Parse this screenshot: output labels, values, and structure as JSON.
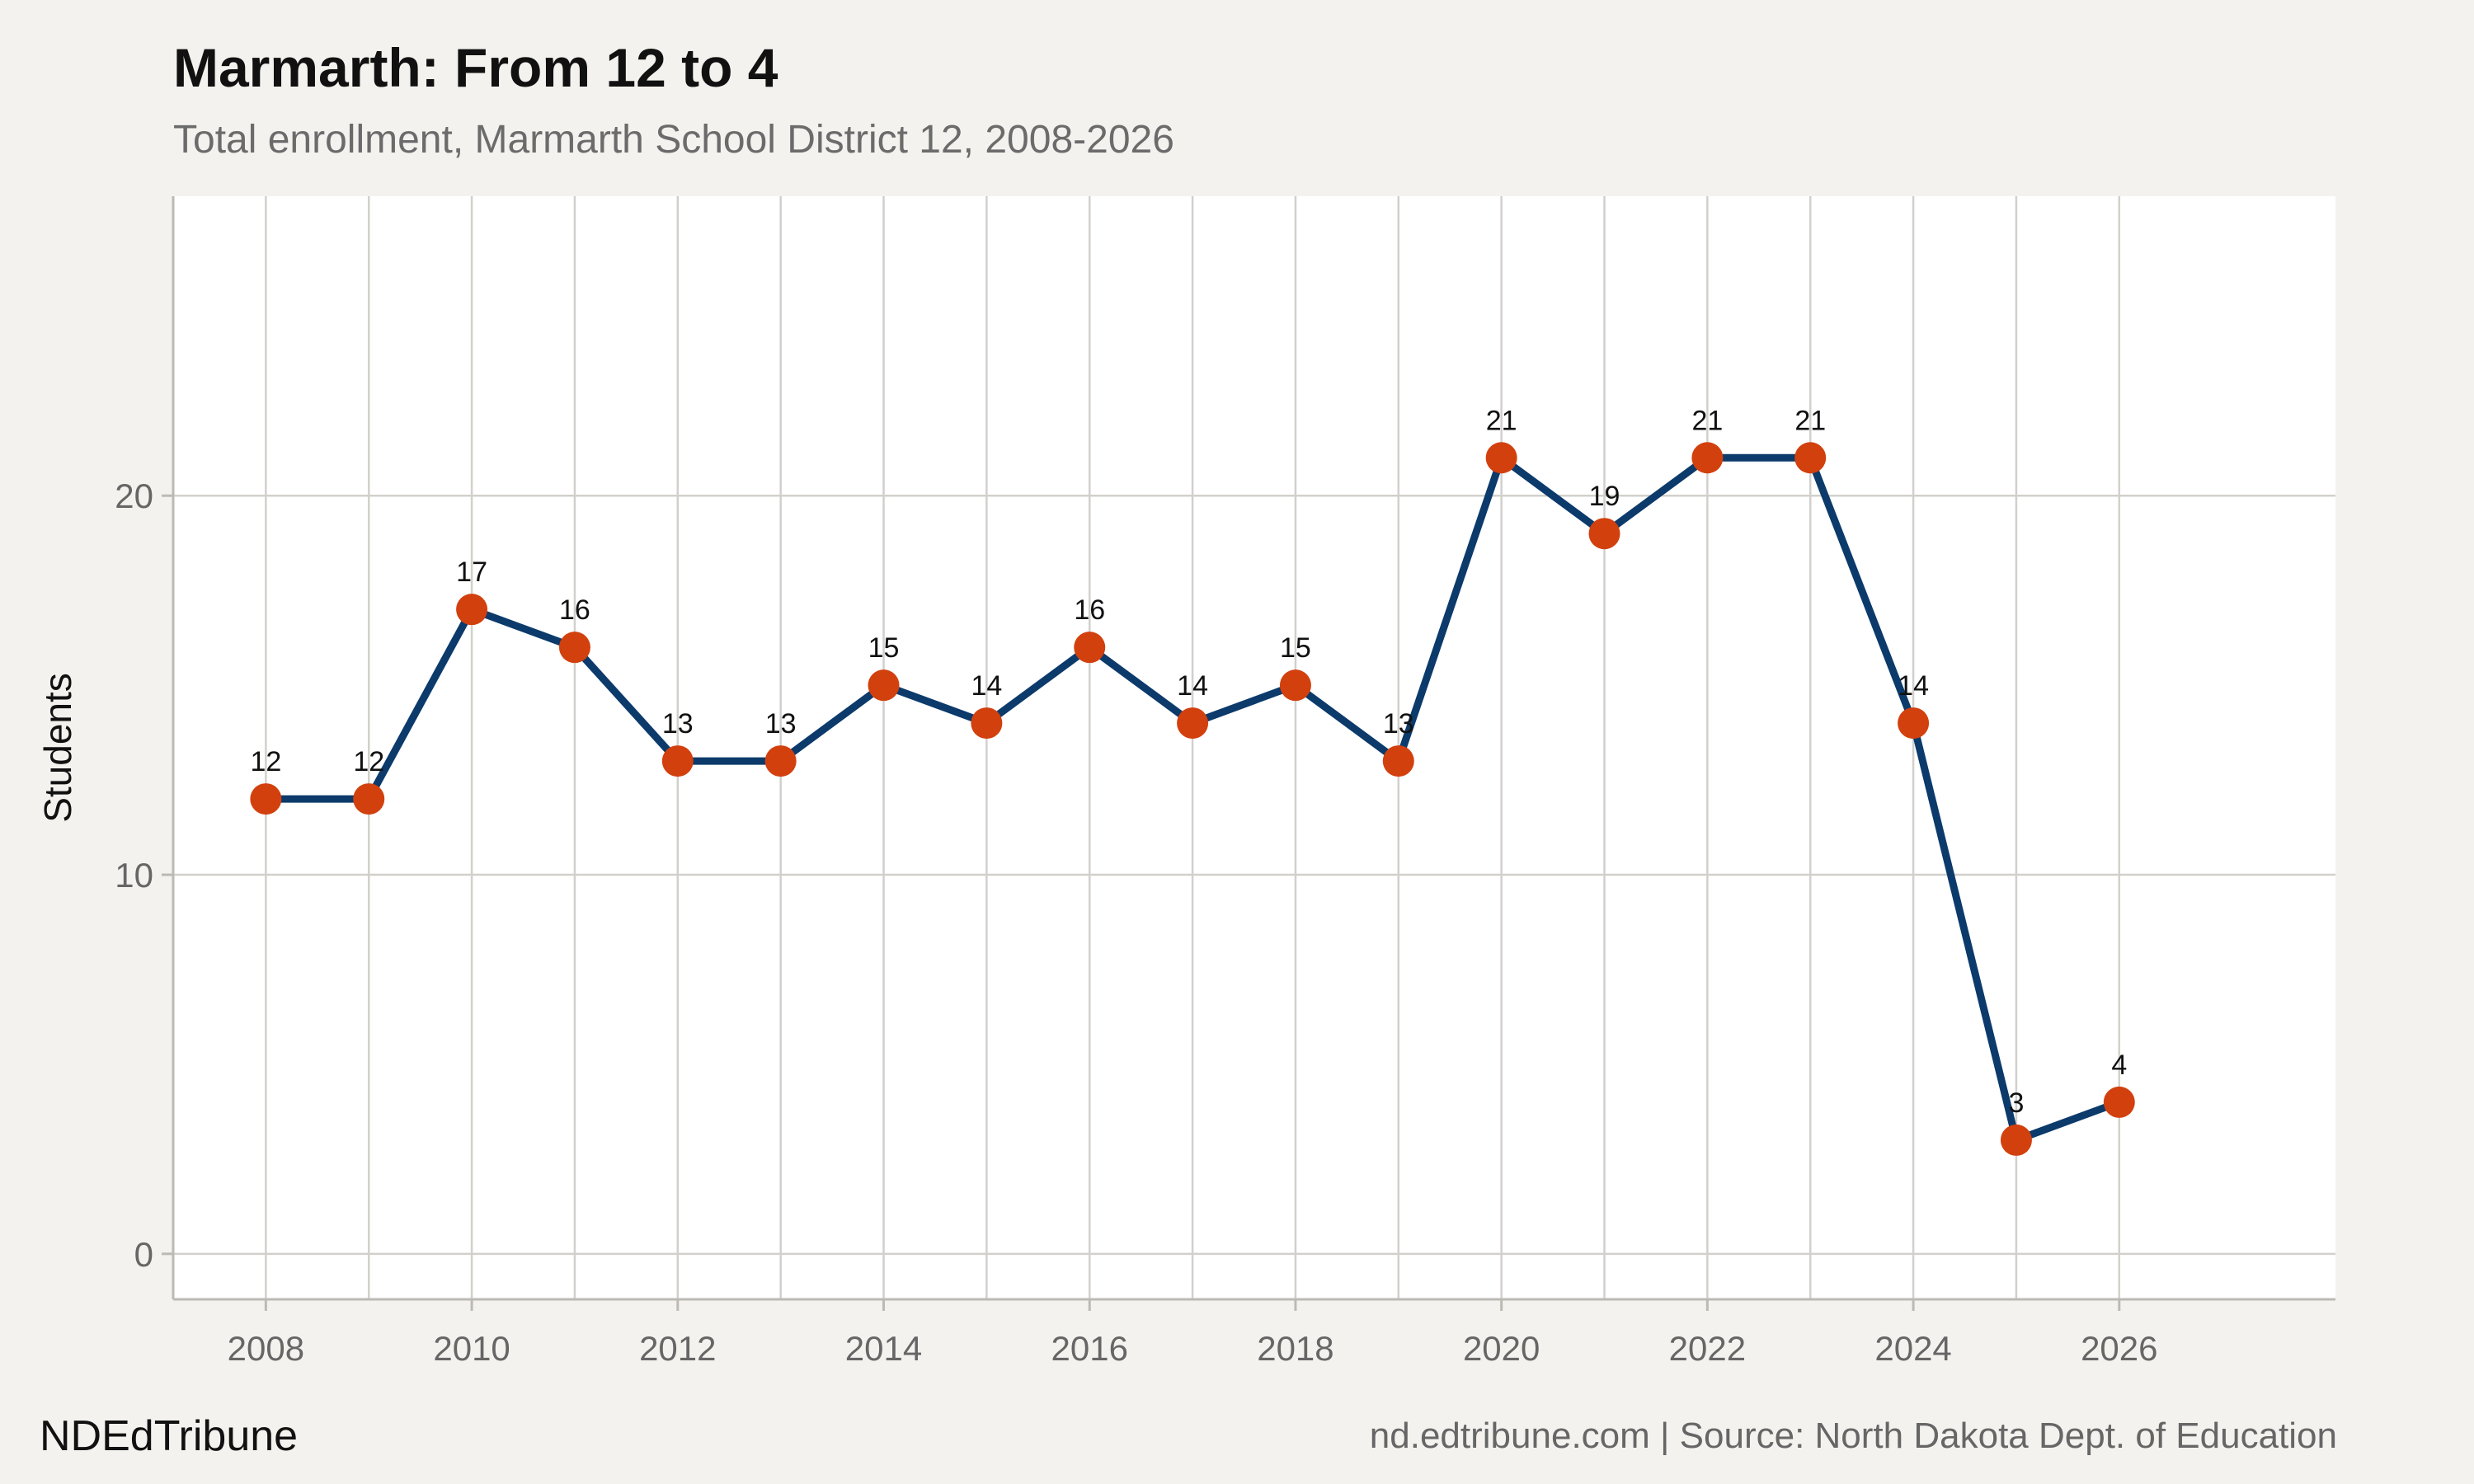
{
  "chart_data": {
    "type": "line",
    "title": "Marmarth: From 12 to 4",
    "subtitle": "Total enrollment, Marmarth School District 12, 2008-2026",
    "ylabel": "Students",
    "xlabel": "",
    "x": [
      2008,
      2009,
      2010,
      2011,
      2012,
      2013,
      2014,
      2015,
      2016,
      2017,
      2018,
      2019,
      2020,
      2021,
      2022,
      2023,
      2024,
      2025,
      2026
    ],
    "series": [
      {
        "values": [
          12,
          12,
          17,
          16,
          13,
          13,
          15,
          14,
          16,
          14,
          15,
          13,
          21,
          19,
          21,
          21,
          14,
          3,
          4
        ]
      }
    ],
    "xlim": [
      2007.1,
      2028.1
    ],
    "ylim": [
      -1.2,
      27.9
    ],
    "xticks": [
      2008,
      2010,
      2012,
      2014,
      2016,
      2018,
      2020,
      2022,
      2024,
      2026
    ],
    "yticks": [
      0,
      10,
      20
    ],
    "grid": true,
    "legend": "none",
    "data_labels": true
  },
  "footer": {
    "brand": "NDEdTribune",
    "source": "nd.edtribune.com | Source: North Dakota Dept. of Education"
  },
  "colors": {
    "background": "#f4f2ee",
    "panel": "#ffffff",
    "grid": "#d2d0cc",
    "line": "#0b3a6b",
    "point": "#d2400e"
  }
}
